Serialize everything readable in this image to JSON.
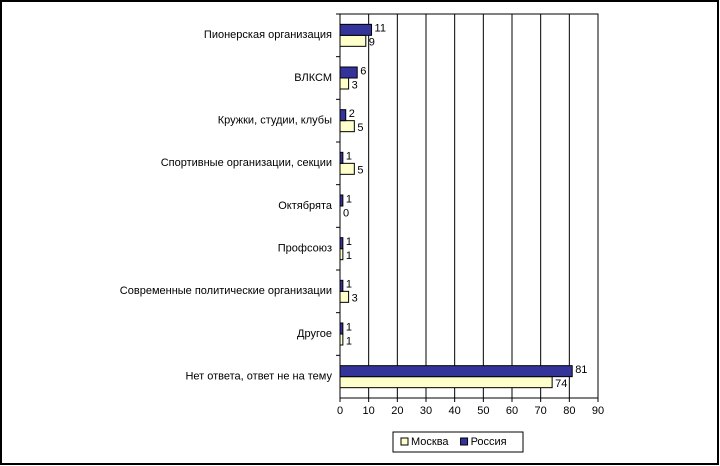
{
  "chart_data": {
    "type": "bar",
    "orientation": "horizontal",
    "categories": [
      "Пионерская организация",
      "ВЛКСМ",
      "Кружки, студии, клубы",
      "Спортивные организации, секции",
      "Октябрята",
      "Профсоюз",
      "Современные политические организации",
      "Другое",
      "Нет ответа, ответ не на тему"
    ],
    "series": [
      {
        "name": "Москва",
        "color": "#ffffcc",
        "values": [
          9,
          3,
          5,
          5,
          0,
          1,
          3,
          1,
          74
        ]
      },
      {
        "name": "Россия",
        "color": "#333399",
        "values": [
          11,
          6,
          2,
          1,
          1,
          1,
          1,
          1,
          81
        ]
      }
    ],
    "xlim": [
      0,
      90
    ],
    "xticks": [
      0,
      10,
      20,
      30,
      40,
      50,
      60,
      70,
      80,
      90
    ],
    "grid": true,
    "legend": "bottom"
  }
}
